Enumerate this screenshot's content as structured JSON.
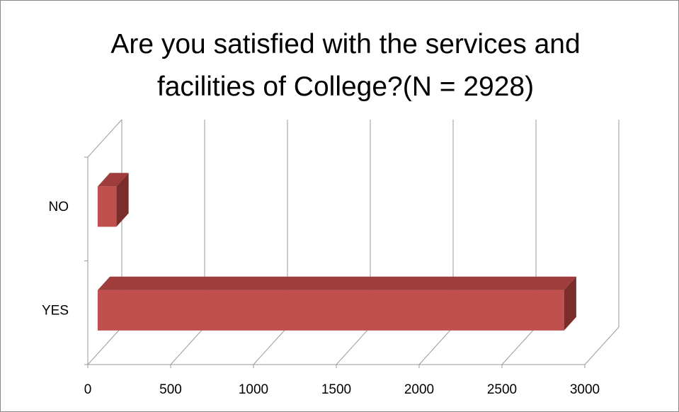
{
  "chart_data": {
    "type": "bar3d_horizontal",
    "title_lines": [
      "Are you satisfied with the services and",
      "facilities of College?(N = 2928)"
    ],
    "categories": [
      "NO",
      "YES"
    ],
    "values": [
      113,
      2815
    ],
    "color": "#c0504d",
    "xlim": [
      0,
      3000
    ],
    "xticks": [
      0,
      500,
      1000,
      1500,
      2000,
      2500,
      3000
    ],
    "grid": true
  }
}
